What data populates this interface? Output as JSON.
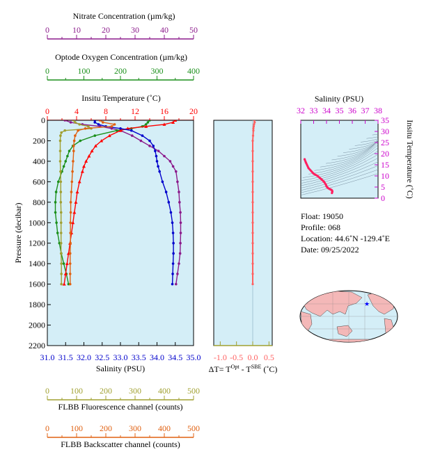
{
  "colors": {
    "nitrate": "#8b1a8b",
    "oxygen": "#1a8f1a",
    "temperature": "#ff0000",
    "salinity": "#0000cc",
    "fluorescence": "#a0a030",
    "backscatter": "#e06010",
    "delta": "#ff6060",
    "ts_magenta": "#cc00cc",
    "ts_curve": "#ff2060",
    "plot_bg": "#d4eef7"
  },
  "chart_data": {
    "type": "line",
    "pressure_axis": {
      "label": "Pressure (decibar)",
      "ticks": [
        "0",
        "200",
        "400",
        "600",
        "800",
        "1000",
        "1200",
        "1400",
        "1600",
        "1800",
        "2000",
        "2200"
      ],
      "range": [
        0,
        2200
      ]
    },
    "axes": {
      "nitrate": {
        "label": "Nitrate Concentration (µm/kg)",
        "ticks": [
          "0",
          "10",
          "20",
          "30",
          "40",
          "50"
        ],
        "range": [
          0,
          50
        ]
      },
      "oxygen": {
        "label": "Optode Oxygen Concentration (µm/kg)",
        "ticks": [
          "0",
          "100",
          "200",
          "300",
          "400"
        ],
        "range": [
          0,
          400
        ]
      },
      "temperature": {
        "label": "Insitu Temperature (˚C)",
        "ticks": [
          "0",
          "4",
          "8",
          "12",
          "16",
          "20"
        ],
        "range": [
          0,
          20
        ]
      },
      "salinity": {
        "label": "Salinity (PSU)",
        "ticks": [
          "31.0",
          "31.5",
          "32.0",
          "32.5",
          "33.0",
          "33.5",
          "34.0",
          "34.5",
          "35.0"
        ],
        "range": [
          31.0,
          35.0
        ]
      },
      "fluorescence": {
        "label": "FLBB Fluorescence channel (counts)",
        "ticks": [
          "0",
          "100",
          "200",
          "300",
          "400",
          "500"
        ],
        "range": [
          0,
          500
        ]
      },
      "backscatter": {
        "label": "FLBB Backscatter channel (counts)",
        "ticks": [
          "0",
          "100",
          "200",
          "300",
          "400",
          "500"
        ],
        "range": [
          0,
          500
        ]
      }
    },
    "series": [
      {
        "key": "nitrate",
        "color": "#8b1a8b",
        "p": [
          0,
          20,
          40,
          60,
          80,
          100,
          150,
          200,
          250,
          300,
          350,
          400,
          450,
          500,
          600,
          700,
          800,
          900,
          1000,
          1100,
          1200,
          1300,
          1400,
          1500,
          1600
        ],
        "values": [
          6,
          8,
          12,
          18,
          22,
          25,
          29,
          32,
          35,
          38,
          40,
          42,
          43,
          44,
          44.5,
          45,
          45.2,
          45.5,
          45.6,
          45.6,
          45.5,
          45.4,
          45,
          44.5,
          44
        ]
      },
      {
        "key": "oxygen",
        "color": "#1a8f1a",
        "p": [
          0,
          20,
          40,
          60,
          80,
          100,
          150,
          200,
          250,
          300,
          350,
          400,
          450,
          500,
          600,
          700,
          800,
          900,
          1000,
          1100,
          1200,
          1300,
          1400,
          1500,
          1600
        ],
        "values": [
          280,
          275,
          270,
          260,
          230,
          190,
          130,
          90,
          70,
          60,
          55,
          50,
          45,
          40,
          30,
          24,
          22,
          22,
          25,
          28,
          33,
          38,
          45,
          52,
          58
        ]
      },
      {
        "key": "temperature",
        "color": "#ff0000",
        "p": [
          0,
          20,
          40,
          60,
          80,
          100,
          150,
          200,
          250,
          300,
          350,
          400,
          450,
          500,
          600,
          700,
          800,
          900,
          1000,
          1100,
          1200,
          1300,
          1400,
          1500,
          1600
        ],
        "values": [
          17.5,
          17.2,
          16,
          13.5,
          11,
          10,
          8.5,
          7.4,
          6.6,
          6.1,
          5.7,
          5.3,
          5.0,
          4.8,
          4.4,
          4.1,
          3.9,
          3.7,
          3.5,
          3.3,
          3.1,
          2.9,
          2.7,
          2.5,
          2.3
        ]
      },
      {
        "key": "salinity",
        "color": "#0000cc",
        "p": [
          0,
          20,
          40,
          60,
          80,
          100,
          150,
          200,
          250,
          300,
          350,
          400,
          450,
          500,
          600,
          700,
          800,
          900,
          1000,
          1100,
          1200,
          1300,
          1400,
          1500,
          1600
        ],
        "values": [
          32.3,
          32.3,
          32.4,
          32.6,
          33.0,
          33.3,
          33.6,
          33.8,
          33.9,
          33.95,
          33.98,
          34.0,
          34.03,
          34.07,
          34.15,
          34.25,
          34.32,
          34.38,
          34.42,
          34.44,
          34.45,
          34.45,
          34.44,
          34.43,
          34.42
        ]
      },
      {
        "key": "fluorescence",
        "color": "#a0a030",
        "p": [
          0,
          20,
          40,
          60,
          80,
          100,
          120,
          150,
          200,
          300,
          400,
          500,
          600,
          700,
          800,
          900,
          1000,
          1100,
          1200,
          1300,
          1400,
          1500,
          1600
        ],
        "values": [
          90,
          95,
          110,
          140,
          150,
          60,
          48,
          45,
          44,
          44,
          44,
          45,
          46,
          46,
          46,
          47,
          47,
          47,
          47,
          47,
          48,
          48,
          48
        ]
      },
      {
        "key": "backscatter",
        "color": "#e06010",
        "p": [
          0,
          20,
          40,
          60,
          80,
          100,
          150,
          200,
          250,
          300,
          400,
          500,
          600,
          700,
          800,
          900,
          1000,
          1100,
          1200,
          1300,
          1400,
          1500,
          1600
        ],
        "values": [
          180,
          190,
          230,
          220,
          130,
          105,
          95,
          92,
          90,
          90,
          88,
          86,
          84,
          82,
          80,
          80,
          79,
          79,
          79,
          78,
          78,
          78,
          78
        ]
      }
    ],
    "delta_plot": {
      "xlabel_parts": [
        "ΔT= T",
        "Opt",
        " - T",
        "SBE",
        " (˚C)"
      ],
      "ticks": [
        "-1.0",
        "-0.5",
        "0.0",
        "0.5"
      ],
      "range": [
        -1.2,
        0.6
      ],
      "p": [
        0,
        20,
        40,
        60,
        80,
        100,
        150,
        200,
        300,
        400,
        500,
        600,
        700,
        800,
        900,
        1000,
        1100,
        1200,
        1300,
        1400,
        1500,
        1600
      ],
      "values": [
        0.05,
        0.06,
        0.04,
        0.03,
        0.02,
        0.02,
        0.01,
        0.0,
        0.0,
        0.0,
        0.0,
        0.0,
        0.0,
        0.0,
        0.0,
        0.0,
        0.0,
        0.0,
        0.0,
        0.0,
        0.0,
        0.0
      ]
    },
    "ts_diagram": {
      "xlabel": "Salinity (PSU)",
      "xticks": [
        "32",
        "33",
        "34",
        "35",
        "36",
        "37",
        "38"
      ],
      "xrange": [
        32,
        38
      ],
      "ylabel": "Insitu Temperature (˚C)",
      "yticks": [
        "0",
        "5",
        "10",
        "15",
        "20",
        "25",
        "30",
        "35"
      ],
      "yrange": [
        0,
        35
      ],
      "salinity": [
        32.3,
        32.4,
        32.6,
        33.0,
        33.3,
        33.6,
        33.8,
        33.95,
        34.0,
        34.07,
        34.15,
        34.25,
        34.32,
        34.38,
        34.42,
        34.45,
        34.44,
        34.42
      ],
      "temperature": [
        17.5,
        16,
        13.5,
        11,
        10,
        8.5,
        7.4,
        6.1,
        5.3,
        4.8,
        4.4,
        4.1,
        3.9,
        3.7,
        3.5,
        3.1,
        2.7,
        2.3
      ]
    }
  },
  "float_info": {
    "float": "Float:  19050",
    "profile": "Profile:  068",
    "location": "Location:  44.6˚N  -129.4˚E",
    "date": "Date:  09/25/2022"
  },
  "map": {
    "marker_lat": 44.6,
    "marker_lon": -129.4
  }
}
